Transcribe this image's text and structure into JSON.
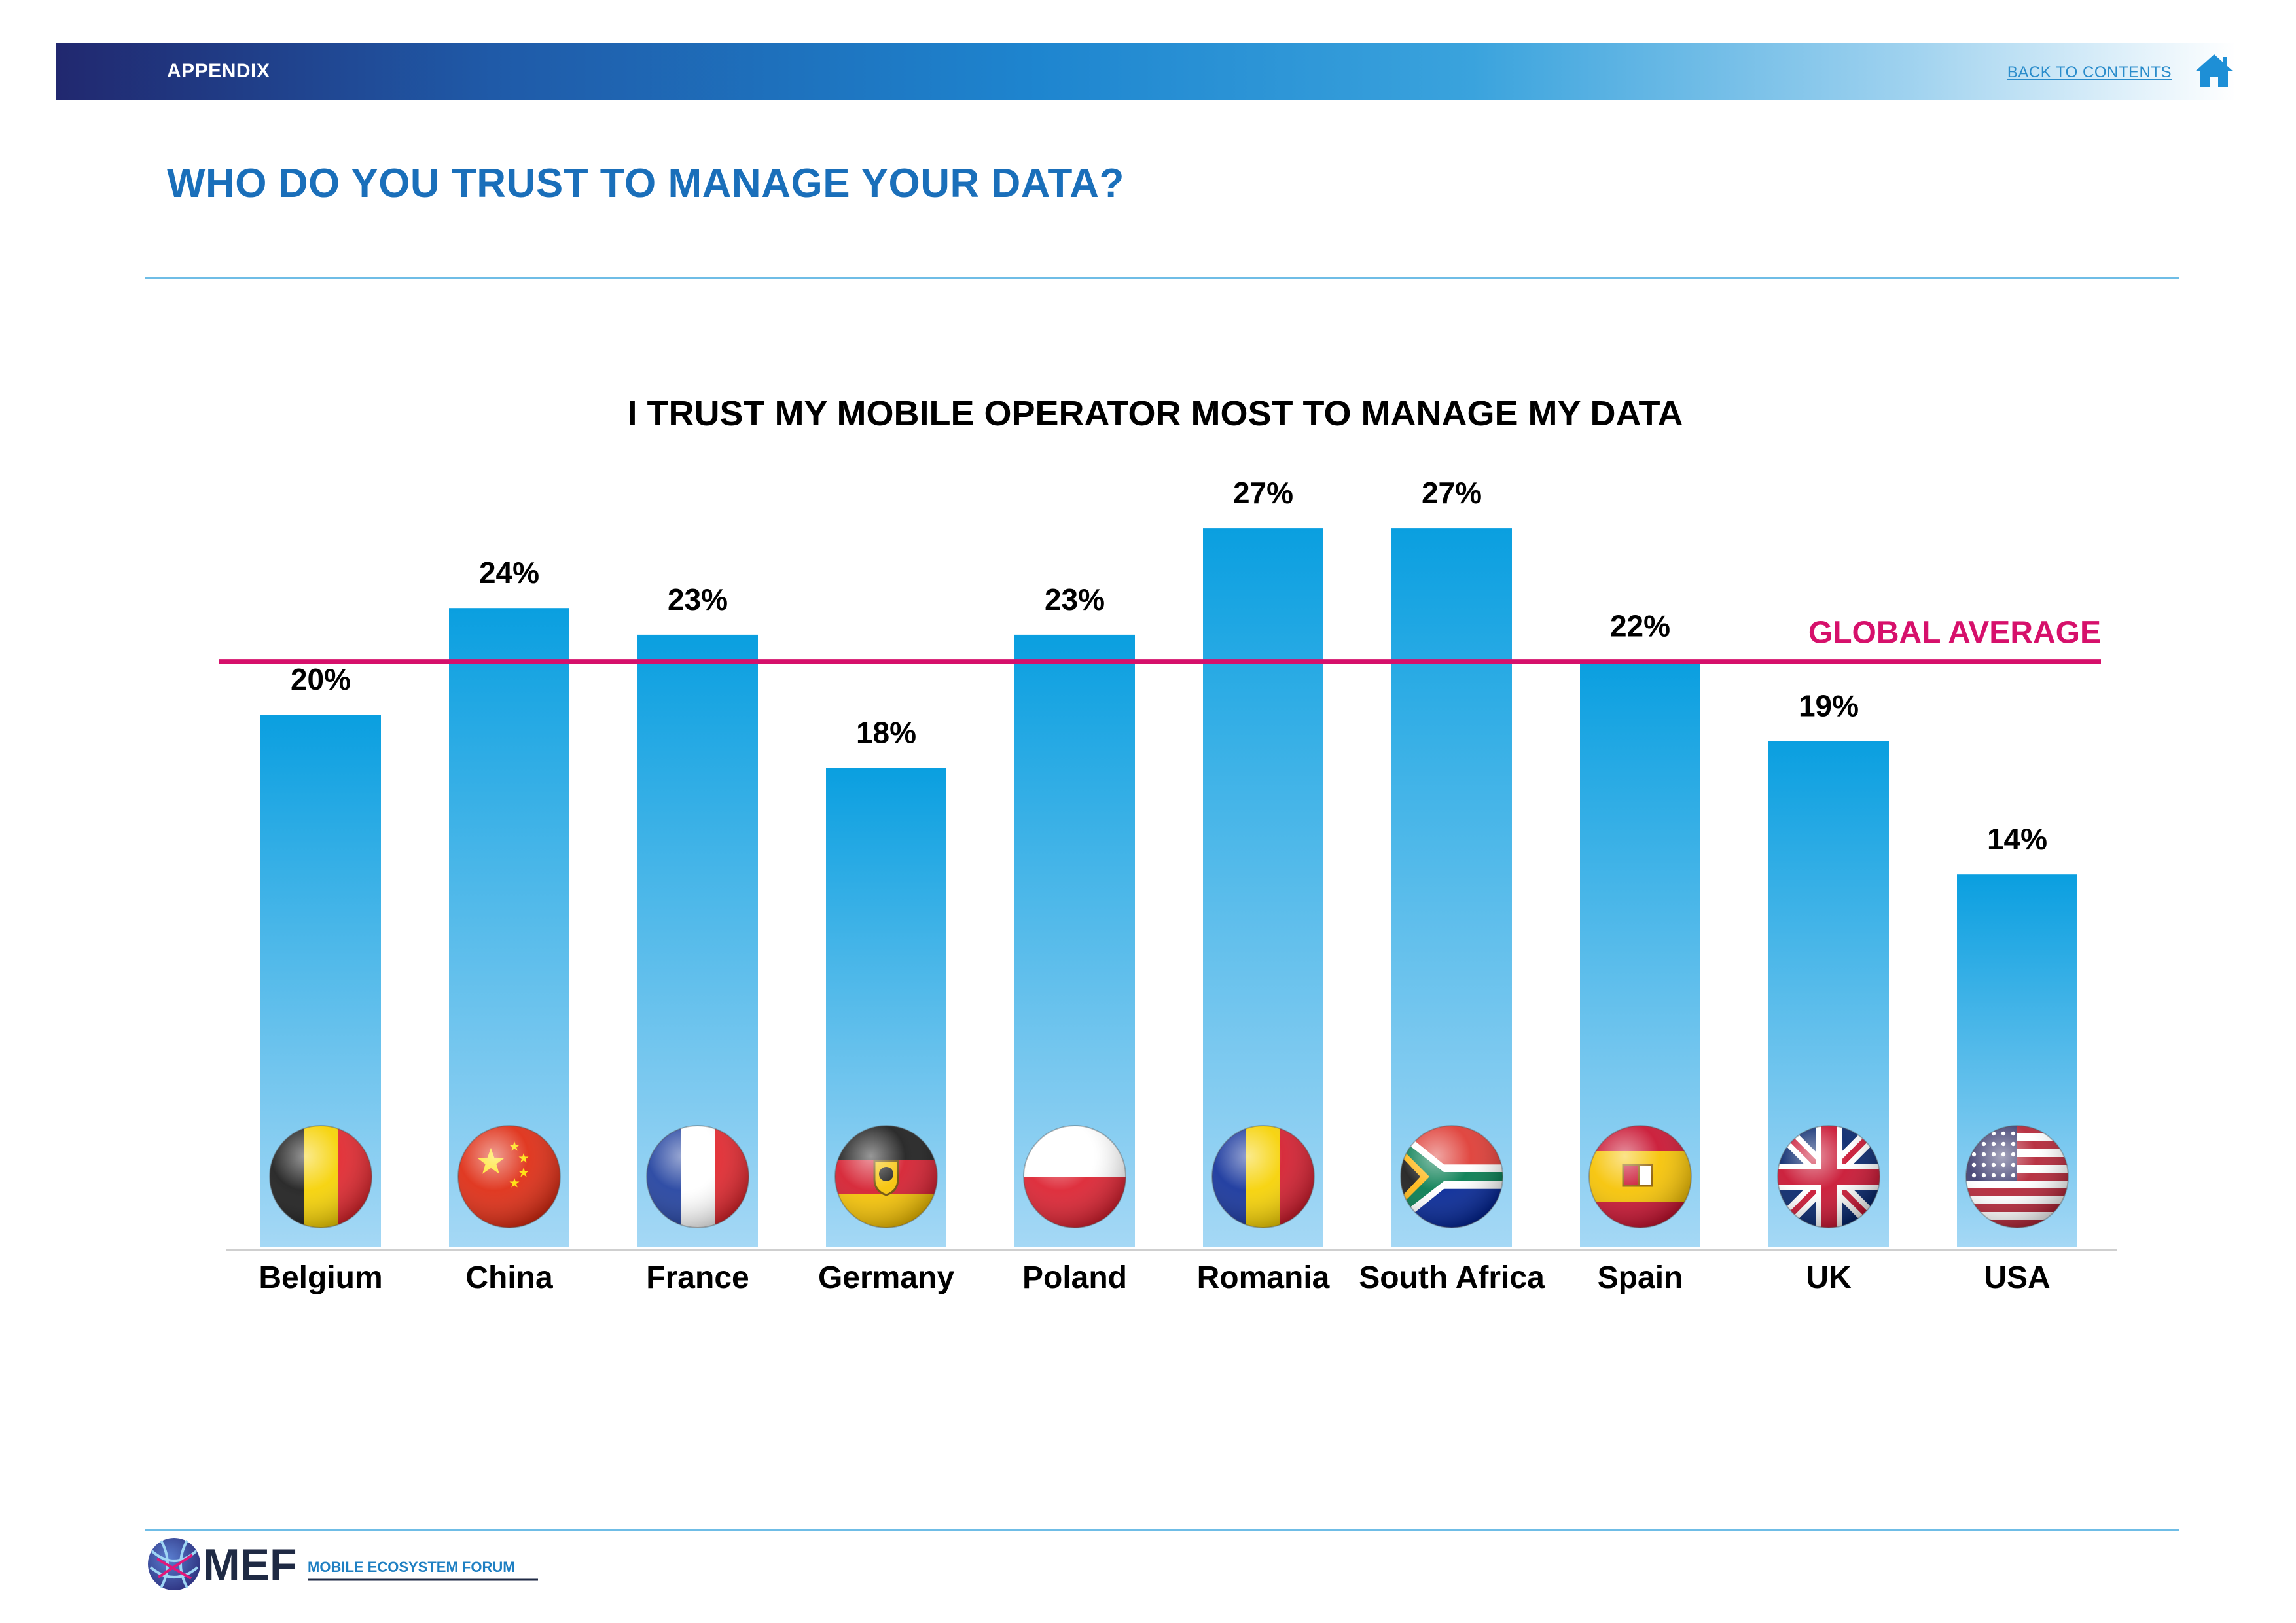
{
  "header": {
    "section": "APPENDIX",
    "back_link": "BACK TO CONTENTS",
    "home_icon": "home-icon"
  },
  "page_title": "WHO DO YOU TRUST TO MANAGE YOUR DATA?",
  "chart_data": {
    "type": "bar",
    "title": "I TRUST MY MOBILE OPERATOR MOST TO MANAGE MY DATA",
    "categories": [
      "Belgium",
      "China",
      "France",
      "Germany",
      "Poland",
      "Romania",
      "South Africa",
      "Spain",
      "UK",
      "USA"
    ],
    "values": [
      20,
      24,
      23,
      18,
      23,
      27,
      27,
      22,
      19,
      14
    ],
    "value_labels": [
      "20%",
      "24%",
      "23%",
      "18%",
      "23%",
      "27%",
      "27%",
      "22%",
      "19%",
      "14%"
    ],
    "flags": [
      "belgium-flag-icon",
      "china-flag-icon",
      "france-flag-icon",
      "germany-flag-icon",
      "poland-flag-icon",
      "romania-flag-icon",
      "south-africa-flag-icon",
      "spain-flag-icon",
      "uk-flag-icon",
      "usa-flag-icon"
    ],
    "reference_line": {
      "label": "GLOBAL AVERAGE",
      "value": 22,
      "color": "#d6106b"
    },
    "ylim": [
      0,
      30
    ],
    "grid": false,
    "xlabel": "",
    "ylabel": "",
    "bar_color_top": "#0a9fe0",
    "bar_color_bottom": "#a5d8f5"
  },
  "footer": {
    "logo_text": "MEF",
    "logo_subtitle": "MOBILE ECOSYSTEM FORUM"
  }
}
